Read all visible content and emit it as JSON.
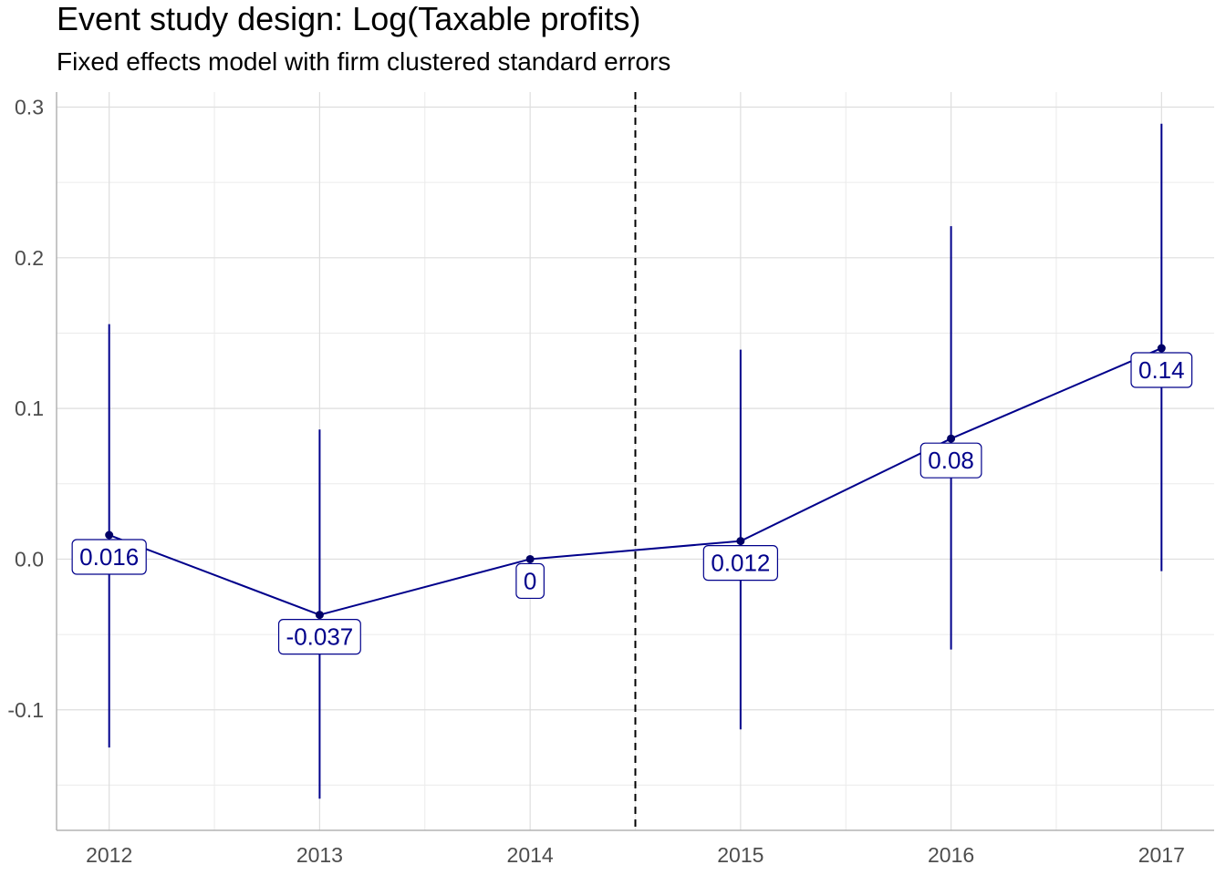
{
  "chart_data": {
    "type": "line",
    "title": "Event study design: Log(Taxable profits)",
    "subtitle": "Fixed effects model with firm clustered standard errors",
    "xlabel": "",
    "ylabel": "",
    "x": [
      2012,
      2013,
      2014,
      2015,
      2016,
      2017
    ],
    "estimate": [
      0.016,
      -0.037,
      0,
      0.012,
      0.08,
      0.14
    ],
    "ci_low": [
      -0.125,
      -0.159,
      0,
      -0.113,
      -0.06,
      -0.008
    ],
    "ci_high": [
      0.156,
      0.086,
      0,
      0.139,
      0.221,
      0.289
    ],
    "labels": [
      "0.016",
      "-0.037",
      "0",
      "0.012",
      "0.08",
      "0.14"
    ],
    "x_ticks": [
      "2012",
      "2013",
      "2014",
      "2015",
      "2016",
      "2017"
    ],
    "y_ticks": [
      -0.1,
      0.0,
      0.1,
      0.2,
      0.3
    ],
    "y_tick_labels": [
      "-0.1",
      "0.0",
      "0.1",
      "0.2",
      "0.3"
    ],
    "ylim": [
      -0.18,
      0.31
    ],
    "xlim": [
      2011.75,
      2017.25
    ],
    "vline_x": 2014.5,
    "grid": true,
    "line_color": "#00008b",
    "vline_color": "#000000"
  }
}
